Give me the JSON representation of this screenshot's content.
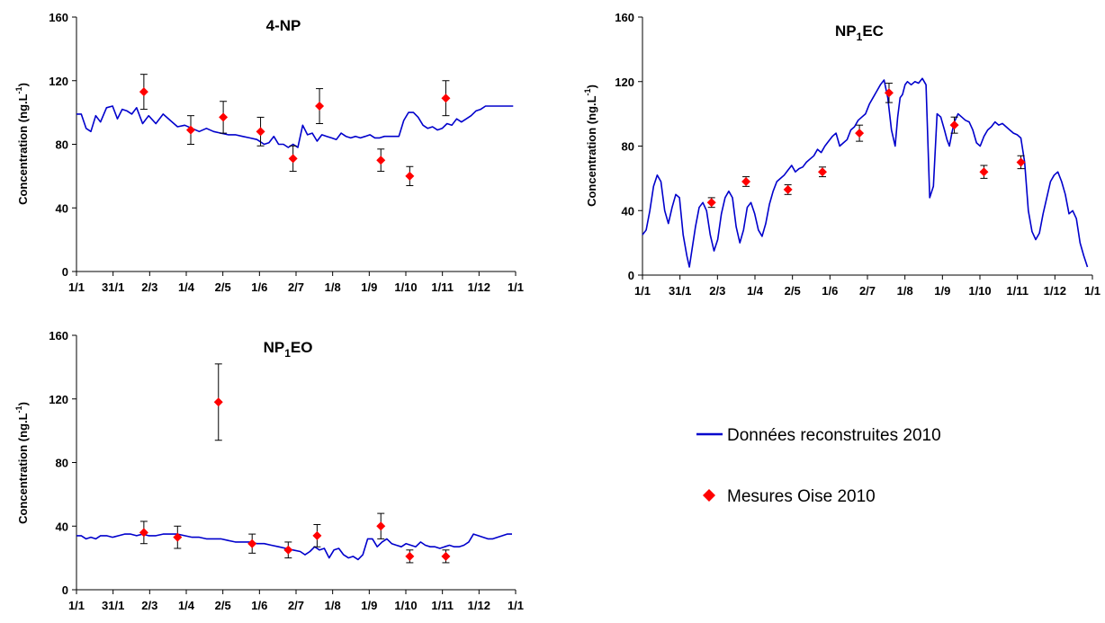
{
  "chart_data": [
    {
      "type": "line",
      "id": "np",
      "title": "4-NP",
      "title_sub": "",
      "title_suffix": "",
      "ylabel": "Concentration (ng.L",
      "ylabel_sup": "-1",
      "ylabel_end": ")",
      "ylim": [
        0,
        160
      ],
      "yticks": [
        "0",
        "40",
        "80",
        "120",
        "160"
      ],
      "xticks": [
        "1/1",
        "31/1",
        "2/3",
        "1/4",
        "2/5",
        "1/6",
        "2/7",
        "1/8",
        "1/9",
        "1/10",
        "1/11",
        "1/12",
        "1/1"
      ],
      "series": [
        {
          "name": "Données reconstruites 2010",
          "kind": "line",
          "color": "#0000cc",
          "x": [
            0,
            4,
            8,
            12,
            16,
            20,
            25,
            30,
            34,
            38,
            42,
            46,
            50,
            55,
            60,
            66,
            72,
            78,
            84,
            90,
            96,
            102,
            108,
            114,
            120,
            126,
            132,
            138,
            144,
            150,
            156,
            160,
            164,
            168,
            172,
            176,
            180,
            184,
            188,
            192,
            196,
            200,
            204,
            208,
            212,
            216,
            220,
            224,
            228,
            232,
            236,
            240,
            244,
            248,
            252,
            256,
            260,
            264,
            268,
            272,
            276,
            280,
            284,
            288,
            292,
            296,
            300,
            304,
            308,
            312,
            316,
            320,
            324,
            328,
            332,
            336,
            340,
            344,
            348,
            352,
            356,
            360,
            363
          ],
          "y": [
            99,
            99,
            90,
            88,
            98,
            94,
            103,
            104,
            96,
            102,
            101,
            99,
            103,
            93,
            98,
            93,
            99,
            95,
            91,
            92,
            90,
            88,
            90,
            88,
            87,
            86,
            86,
            85,
            84,
            83,
            80,
            81,
            85,
            80,
            80,
            78,
            80,
            78,
            92,
            86,
            87,
            82,
            86,
            85,
            84,
            83,
            87,
            85,
            84,
            85,
            84,
            85,
            86,
            84,
            84,
            85,
            85,
            85,
            85,
            95,
            100,
            100,
            97,
            92,
            90,
            91,
            89,
            90,
            93,
            92,
            96,
            94,
            96,
            98,
            101,
            102,
            104,
            104,
            104,
            104,
            104,
            104,
            104
          ]
        },
        {
          "name": "Mesures Oise 2010",
          "kind": "points",
          "color": "#ff0000",
          "x": [
            56,
            95,
            122,
            153,
            180,
            202,
            253,
            277,
            307
          ],
          "y": [
            113,
            89,
            97,
            88,
            71,
            104,
            70,
            60,
            109
          ],
          "err": [
            11,
            9,
            10,
            9,
            8,
            11,
            7,
            6,
            11
          ]
        }
      ]
    },
    {
      "type": "line",
      "id": "ec",
      "title": "NP",
      "title_sub": "1",
      "title_suffix": "EC",
      "ylabel": "Concentration (ng.L",
      "ylabel_sup": "-1",
      "ylabel_end": ")",
      "ylim": [
        0,
        160
      ],
      "yticks": [
        "0",
        "40",
        "80",
        "120",
        "160"
      ],
      "xticks": [
        "1/1",
        "31/1",
        "2/3",
        "1/4",
        "2/5",
        "1/6",
        "2/7",
        "1/8",
        "1/9",
        "1/10",
        "1/11",
        "1/12",
        "1/1"
      ],
      "series": [
        {
          "name": "Données reconstruites 2010",
          "kind": "line",
          "color": "#0000cc",
          "x": [
            0,
            3,
            6,
            9,
            12,
            15,
            18,
            21,
            24,
            27,
            30,
            33,
            36,
            38,
            40,
            43,
            46,
            49,
            52,
            55,
            58,
            61,
            64,
            67,
            70,
            73,
            76,
            79,
            82,
            85,
            88,
            91,
            94,
            97,
            100,
            103,
            106,
            109,
            112,
            115,
            118,
            121,
            124,
            127,
            130,
            133,
            136,
            139,
            142,
            145,
            148,
            151,
            154,
            157,
            160,
            163,
            166,
            169,
            172,
            175,
            178,
            181,
            184,
            187,
            190,
            193,
            196,
            199,
            202,
            205,
            207,
            209,
            211,
            213,
            215,
            218,
            221,
            224,
            227,
            230,
            233,
            236,
            239,
            242,
            245,
            247,
            249,
            251,
            253,
            256,
            259,
            262,
            265,
            268,
            271,
            274,
            277,
            280,
            283,
            286,
            289,
            292,
            295,
            298,
            301,
            304,
            307,
            310,
            313,
            316,
            319,
            322,
            325,
            328,
            331,
            334,
            337,
            340,
            343,
            346,
            349,
            352,
            355,
            358,
            361
          ],
          "y": [
            25,
            28,
            40,
            55,
            62,
            58,
            40,
            32,
            42,
            50,
            48,
            25,
            12,
            5,
            15,
            30,
            42,
            45,
            40,
            25,
            15,
            22,
            38,
            48,
            52,
            48,
            30,
            20,
            28,
            42,
            45,
            38,
            28,
            24,
            32,
            44,
            52,
            58,
            60,
            62,
            65,
            68,
            64,
            66,
            67,
            70,
            72,
            74,
            78,
            76,
            80,
            83,
            86,
            88,
            80,
            82,
            84,
            90,
            92,
            96,
            98,
            100,
            106,
            110,
            114,
            118,
            121,
            110,
            90,
            80,
            98,
            110,
            112,
            118,
            120,
            118,
            120,
            119,
            122,
            118,
            48,
            55,
            100,
            98,
            90,
            84,
            80,
            88,
            95,
            100,
            98,
            96,
            95,
            90,
            82,
            80,
            86,
            90,
            92,
            95,
            93,
            94,
            92,
            90,
            88,
            87,
            85,
            70,
            40,
            27,
            22,
            26,
            38,
            48,
            58,
            62,
            64,
            58,
            50,
            38,
            40,
            35,
            20,
            12,
            5
          ],
          "note": ""
        },
        {
          "name": "Mesures Oise 2010",
          "kind": "points",
          "color": "#ff0000",
          "x": [
            56,
            84,
            118,
            146,
            176,
            200,
            253,
            277,
            307
          ],
          "y": [
            45,
            58,
            53,
            64,
            88,
            113,
            93,
            64,
            70
          ],
          "err": [
            3,
            3,
            3,
            3,
            5,
            6,
            5,
            4,
            4
          ]
        }
      ]
    },
    {
      "type": "line",
      "id": "eo",
      "title": "NP",
      "title_sub": "1",
      "title_suffix": "EO",
      "ylabel": "Concentration (ng.L",
      "ylabel_sup": "-1",
      "ylabel_end": ")",
      "ylim": [
        0,
        160
      ],
      "yticks": [
        "0",
        "40",
        "80",
        "120",
        "160"
      ],
      "xticks": [
        "1/1",
        "31/1",
        "2/3",
        "1/4",
        "2/5",
        "1/6",
        "2/7",
        "1/8",
        "1/9",
        "1/10",
        "1/11",
        "1/12",
        "1/1"
      ],
      "series": [
        {
          "name": "Données reconstruites 2010",
          "kind": "line",
          "color": "#0000cc",
          "x": [
            0,
            4,
            8,
            12,
            16,
            20,
            25,
            30,
            35,
            40,
            45,
            50,
            55,
            60,
            66,
            72,
            78,
            84,
            90,
            96,
            102,
            108,
            114,
            120,
            126,
            132,
            138,
            144,
            150,
            156,
            162,
            168,
            174,
            180,
            186,
            190,
            194,
            198,
            202,
            206,
            210,
            214,
            218,
            222,
            226,
            230,
            234,
            238,
            242,
            246,
            250,
            254,
            258,
            262,
            266,
            270,
            274,
            278,
            282,
            286,
            290,
            294,
            298,
            302,
            306,
            310,
            314,
            318,
            322,
            326,
            330,
            334,
            338,
            342,
            346,
            350,
            354,
            358,
            362
          ],
          "y": [
            34,
            34,
            32,
            33,
            32,
            34,
            34,
            33,
            34,
            35,
            35,
            34,
            35,
            34,
            34,
            35,
            35,
            35,
            34,
            33,
            33,
            32,
            32,
            32,
            31,
            30,
            30,
            30,
            29,
            29,
            28,
            27,
            26,
            25,
            24,
            22,
            24,
            27,
            25,
            26,
            20,
            25,
            26,
            22,
            20,
            21,
            19,
            22,
            32,
            32,
            27,
            30,
            32,
            29,
            28,
            27,
            29,
            28,
            27,
            30,
            28,
            27,
            27,
            26,
            27,
            28,
            27,
            27,
            28,
            30,
            35,
            34,
            33,
            32,
            32,
            33,
            34,
            35,
            35
          ]
        },
        {
          "name": "Mesures Oise 2010",
          "kind": "points",
          "color": "#ff0000",
          "x": [
            56,
            84,
            118,
            146,
            176,
            200,
            253,
            277,
            307
          ],
          "y": [
            36,
            33,
            118,
            29,
            25,
            34,
            40,
            21,
            21
          ],
          "err": [
            7,
            7,
            24,
            6,
            5,
            7,
            8,
            4,
            4
          ]
        }
      ]
    }
  ],
  "legend": {
    "line_label": "Données reconstruites 2010",
    "marker_label": "Mesures Oise 2010",
    "line_color": "#0000cc",
    "marker_color": "#ff0000"
  }
}
